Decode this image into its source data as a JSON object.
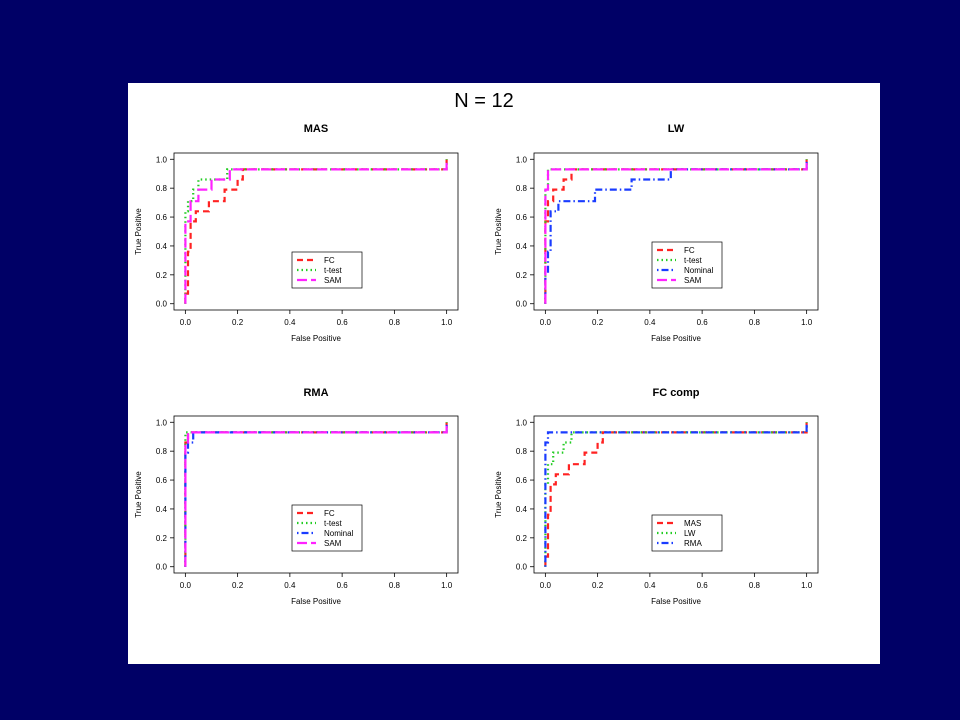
{
  "figure_title": "N = 12",
  "colors": {
    "background": "#000066",
    "panel": "#ffffff",
    "FC": "#ff2222",
    "t-test": "#22cc22",
    "Nominal": "#1a3cff",
    "SAM": "#ff22ff",
    "MAS": "#ff2222",
    "LW": "#22cc22",
    "RMA": "#1a3cff"
  },
  "chart_data": [
    {
      "type": "line",
      "title": "MAS",
      "xlabel": "False Positive",
      "ylabel": "True Positive",
      "xlim": [
        0,
        1
      ],
      "ylim": [
        0,
        1
      ],
      "xticks": [
        "0.0",
        "0.2",
        "0.4",
        "0.6",
        "0.8",
        "1.0"
      ],
      "yticks": [
        "0.0",
        "0.2",
        "0.4",
        "0.6",
        "0.8",
        "1.0"
      ],
      "legend_position": "center-bottom",
      "series": [
        {
          "name": "FC",
          "style": "dashed",
          "color": "#ff2222",
          "x": [
            0.0,
            0.0,
            0.01,
            0.01,
            0.02,
            0.02,
            0.04,
            0.04,
            0.06,
            0.06,
            0.09,
            0.09,
            0.11,
            0.11,
            0.15,
            0.15,
            0.17,
            0.17,
            0.2,
            0.2,
            0.22,
            0.22,
            1.0,
            1.0
          ],
          "y": [
            0.0,
            0.07,
            0.07,
            0.36,
            0.36,
            0.57,
            0.57,
            0.64,
            0.64,
            0.64,
            0.64,
            0.71,
            0.71,
            0.71,
            0.71,
            0.79,
            0.79,
            0.79,
            0.79,
            0.86,
            0.86,
            0.93,
            0.93,
            1.0
          ]
        },
        {
          "name": "t-test",
          "style": "dotted",
          "color": "#22cc22",
          "x": [
            0.0,
            0.0,
            0.01,
            0.01,
            0.03,
            0.03,
            0.05,
            0.05,
            0.16,
            0.16,
            1.0,
            1.0
          ],
          "y": [
            0.0,
            0.64,
            0.64,
            0.71,
            0.71,
            0.79,
            0.79,
            0.86,
            0.86,
            0.93,
            0.93,
            1.0
          ]
        },
        {
          "name": "SAM",
          "style": "longdash",
          "color": "#ff22ff",
          "x": [
            0.0,
            0.0,
            0.02,
            0.02,
            0.05,
            0.05,
            0.1,
            0.1,
            0.17,
            0.17,
            1.0,
            1.0
          ],
          "y": [
            0.0,
            0.57,
            0.57,
            0.71,
            0.71,
            0.79,
            0.79,
            0.86,
            0.86,
            0.93,
            0.93,
            1.0
          ]
        }
      ]
    },
    {
      "type": "line",
      "title": "LW",
      "xlabel": "False Positive",
      "ylabel": "True Positive",
      "xlim": [
        0,
        1
      ],
      "ylim": [
        0,
        1
      ],
      "xticks": [
        "0.0",
        "0.2",
        "0.4",
        "0.6",
        "0.8",
        "1.0"
      ],
      "yticks": [
        "0.0",
        "0.2",
        "0.4",
        "0.6",
        "0.8",
        "1.0"
      ],
      "legend_position": "center-bottom",
      "series": [
        {
          "name": "FC",
          "style": "dashed",
          "color": "#ff2222",
          "x": [
            0.0,
            0.0,
            0.01,
            0.01,
            0.03,
            0.03,
            0.07,
            0.07,
            0.1,
            0.1,
            1.0,
            1.0
          ],
          "y": [
            0.0,
            0.57,
            0.57,
            0.71,
            0.71,
            0.79,
            0.79,
            0.86,
            0.86,
            0.93,
            0.93,
            1.0
          ]
        },
        {
          "name": "t-test",
          "style": "dotted",
          "color": "#22cc22",
          "x": [
            0.0,
            0.0,
            0.01,
            0.01,
            1.0,
            1.0
          ],
          "y": [
            0.0,
            0.79,
            0.79,
            0.93,
            0.93,
            1.0
          ]
        },
        {
          "name": "Nominal",
          "style": "dotdash",
          "color": "#1a3cff",
          "x": [
            0.0,
            0.0,
            0.01,
            0.01,
            0.02,
            0.02,
            0.05,
            0.05,
            0.09,
            0.09,
            0.19,
            0.19,
            0.33,
            0.33,
            0.48,
            0.48,
            1.0,
            1.0
          ],
          "y": [
            0.0,
            0.21,
            0.21,
            0.36,
            0.36,
            0.64,
            0.64,
            0.71,
            0.71,
            0.71,
            0.71,
            0.79,
            0.79,
            0.86,
            0.86,
            0.93,
            0.93,
            1.0
          ]
        },
        {
          "name": "SAM",
          "style": "longdash",
          "color": "#ff22ff",
          "x": [
            0.0,
            0.0,
            0.01,
            0.01,
            1.0,
            1.0
          ],
          "y": [
            0.0,
            0.79,
            0.79,
            0.93,
            0.93,
            1.0
          ]
        }
      ]
    },
    {
      "type": "line",
      "title": "RMA",
      "xlabel": "False Positive",
      "ylabel": "True Positive",
      "xlim": [
        0,
        1
      ],
      "ylim": [
        0,
        1
      ],
      "xticks": [
        "0.0",
        "0.2",
        "0.4",
        "0.6",
        "0.8",
        "1.0"
      ],
      "yticks": [
        "0.0",
        "0.2",
        "0.4",
        "0.6",
        "0.8",
        "1.0"
      ],
      "legend_position": "center-bottom",
      "series": [
        {
          "name": "FC",
          "style": "dashed",
          "color": "#ff2222",
          "x": [
            0.0,
            0.0,
            0.01,
            0.01,
            1.0,
            1.0
          ],
          "y": [
            0.0,
            0.86,
            0.86,
            0.93,
            0.93,
            1.0
          ]
        },
        {
          "name": "t-test",
          "style": "dotted",
          "color": "#22cc22",
          "x": [
            0.0,
            0.0,
            1.0,
            1.0
          ],
          "y": [
            0.0,
            0.93,
            0.93,
            1.0
          ]
        },
        {
          "name": "Nominal",
          "style": "dotdash",
          "color": "#1a3cff",
          "x": [
            0.0,
            0.0,
            0.01,
            0.01,
            0.03,
            0.03,
            1.0,
            1.0
          ],
          "y": [
            0.0,
            0.79,
            0.79,
            0.86,
            0.86,
            0.93,
            0.93,
            1.0
          ]
        },
        {
          "name": "SAM",
          "style": "longdash",
          "color": "#ff22ff",
          "x": [
            0.0,
            0.0,
            0.01,
            0.01,
            1.0,
            1.0
          ],
          "y": [
            0.0,
            0.86,
            0.86,
            0.93,
            0.93,
            1.0
          ]
        }
      ]
    },
    {
      "type": "line",
      "title": "FC comp",
      "xlabel": "False Positive",
      "ylabel": "True Positive",
      "xlim": [
        0,
        1
      ],
      "ylim": [
        0,
        1
      ],
      "xticks": [
        "0.0",
        "0.2",
        "0.4",
        "0.6",
        "0.8",
        "1.0"
      ],
      "yticks": [
        "0.0",
        "0.2",
        "0.4",
        "0.6",
        "0.8",
        "1.0"
      ],
      "legend_position": "center-bottom",
      "series": [
        {
          "name": "MAS",
          "style": "dashed",
          "color": "#ff2222",
          "x": [
            0.0,
            0.0,
            0.01,
            0.01,
            0.02,
            0.02,
            0.04,
            0.04,
            0.06,
            0.06,
            0.09,
            0.09,
            0.11,
            0.11,
            0.15,
            0.15,
            0.17,
            0.17,
            0.2,
            0.2,
            0.22,
            0.22,
            1.0,
            1.0
          ],
          "y": [
            0.0,
            0.07,
            0.07,
            0.36,
            0.36,
            0.57,
            0.57,
            0.64,
            0.64,
            0.64,
            0.64,
            0.71,
            0.71,
            0.71,
            0.71,
            0.79,
            0.79,
            0.79,
            0.79,
            0.86,
            0.86,
            0.93,
            0.93,
            1.0
          ]
        },
        {
          "name": "LW",
          "style": "dotted",
          "color": "#22cc22",
          "x": [
            0.0,
            0.0,
            0.01,
            0.01,
            0.03,
            0.03,
            0.07,
            0.07,
            0.1,
            0.1,
            1.0,
            1.0
          ],
          "y": [
            0.0,
            0.57,
            0.57,
            0.71,
            0.71,
            0.79,
            0.79,
            0.86,
            0.86,
            0.93,
            0.93,
            1.0
          ]
        },
        {
          "name": "RMA",
          "style": "dotdash",
          "color": "#1a3cff",
          "x": [
            0.0,
            0.0,
            0.01,
            0.01,
            1.0,
            1.0
          ],
          "y": [
            0.0,
            0.86,
            0.86,
            0.93,
            0.93,
            1.0
          ]
        }
      ]
    }
  ]
}
